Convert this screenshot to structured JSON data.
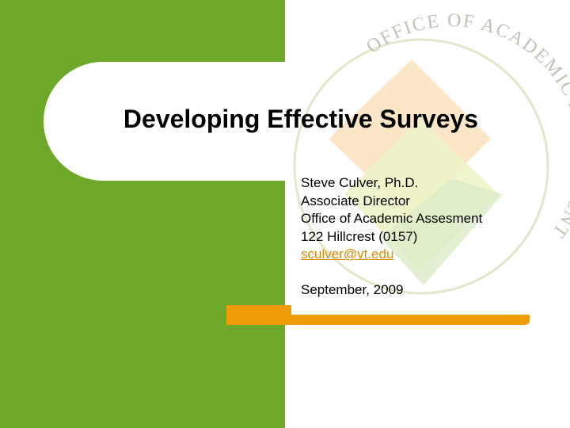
{
  "slide": {
    "title": "Developing Effective Surveys",
    "presenter": "Steve Culver, Ph.D.",
    "role": "Associate Director",
    "office": "Office of Academic Assesment",
    "address": "122 Hillcrest (0157)",
    "email": "sculver@vt.edu",
    "date": "September, 2009"
  },
  "logo": {
    "text": "OFFICE OF ACADEMIC ASSESSMENT"
  },
  "colors": {
    "green": "#6ea82a",
    "orange": "#ee9c07",
    "link": "#d98a00"
  }
}
